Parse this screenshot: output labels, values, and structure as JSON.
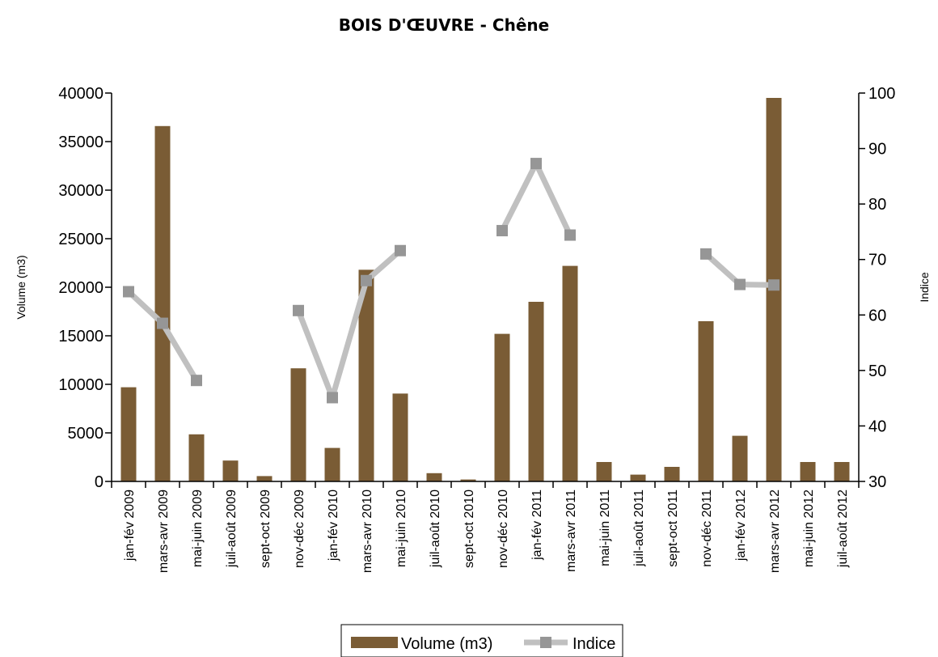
{
  "chart_data": {
    "type": "bar",
    "title": "BOIS D'ŒUVRE - Chêne",
    "categories": [
      "jan-fév 2009",
      "mars-avr 2009",
      "mai-juin 2009",
      "juil-août 2009",
      "sept-oct 2009",
      "nov-déc 2009",
      "jan-fév 2010",
      "mars-avr 2010",
      "mai-juin 2010",
      "juil-août 2010",
      "sept-oct 2010",
      "nov-déc 2010",
      "jan-fév 2011",
      "mars-avr 2011",
      "mai-juin 2011",
      "juil-août 2011",
      "sept-oct 2011",
      "nov-déc 2011",
      "jan-fév 2012",
      "mars-avr 2012",
      "mai-juin 2012",
      "juil-août 2012"
    ],
    "series": [
      {
        "name": "Volume (m3)",
        "type": "bar",
        "axis": "left",
        "color": "#7a5c35",
        "values": [
          9700,
          36600,
          4850,
          2150,
          550,
          11650,
          3450,
          21800,
          9050,
          850,
          200,
          15200,
          18500,
          22200,
          2000,
          700,
          1500,
          16500,
          4700,
          39500,
          2000,
          2000
        ]
      },
      {
        "name": "Indice",
        "type": "line",
        "axis": "right",
        "color": "#c0c0c0",
        "marker_color": "#969696",
        "values": [
          64.2,
          58.5,
          48.2,
          null,
          null,
          60.8,
          45.1,
          66.2,
          71.6,
          null,
          null,
          75.2,
          87.3,
          74.4,
          null,
          null,
          null,
          71.0,
          65.5,
          65.4,
          null,
          null
        ]
      }
    ],
    "ylabel": "Volume (m3)",
    "y2label": "Indice",
    "ylim": [
      0,
      40000
    ],
    "y2lim": [
      30,
      100
    ],
    "yticks": [
      "0",
      "5000",
      "10000",
      "15000",
      "20000",
      "25000",
      "30000",
      "35000",
      "40000"
    ],
    "y2ticks": [
      "30",
      "40",
      "50",
      "60",
      "70",
      "80",
      "90",
      "100"
    ],
    "grid": false,
    "legend": "bottom"
  }
}
